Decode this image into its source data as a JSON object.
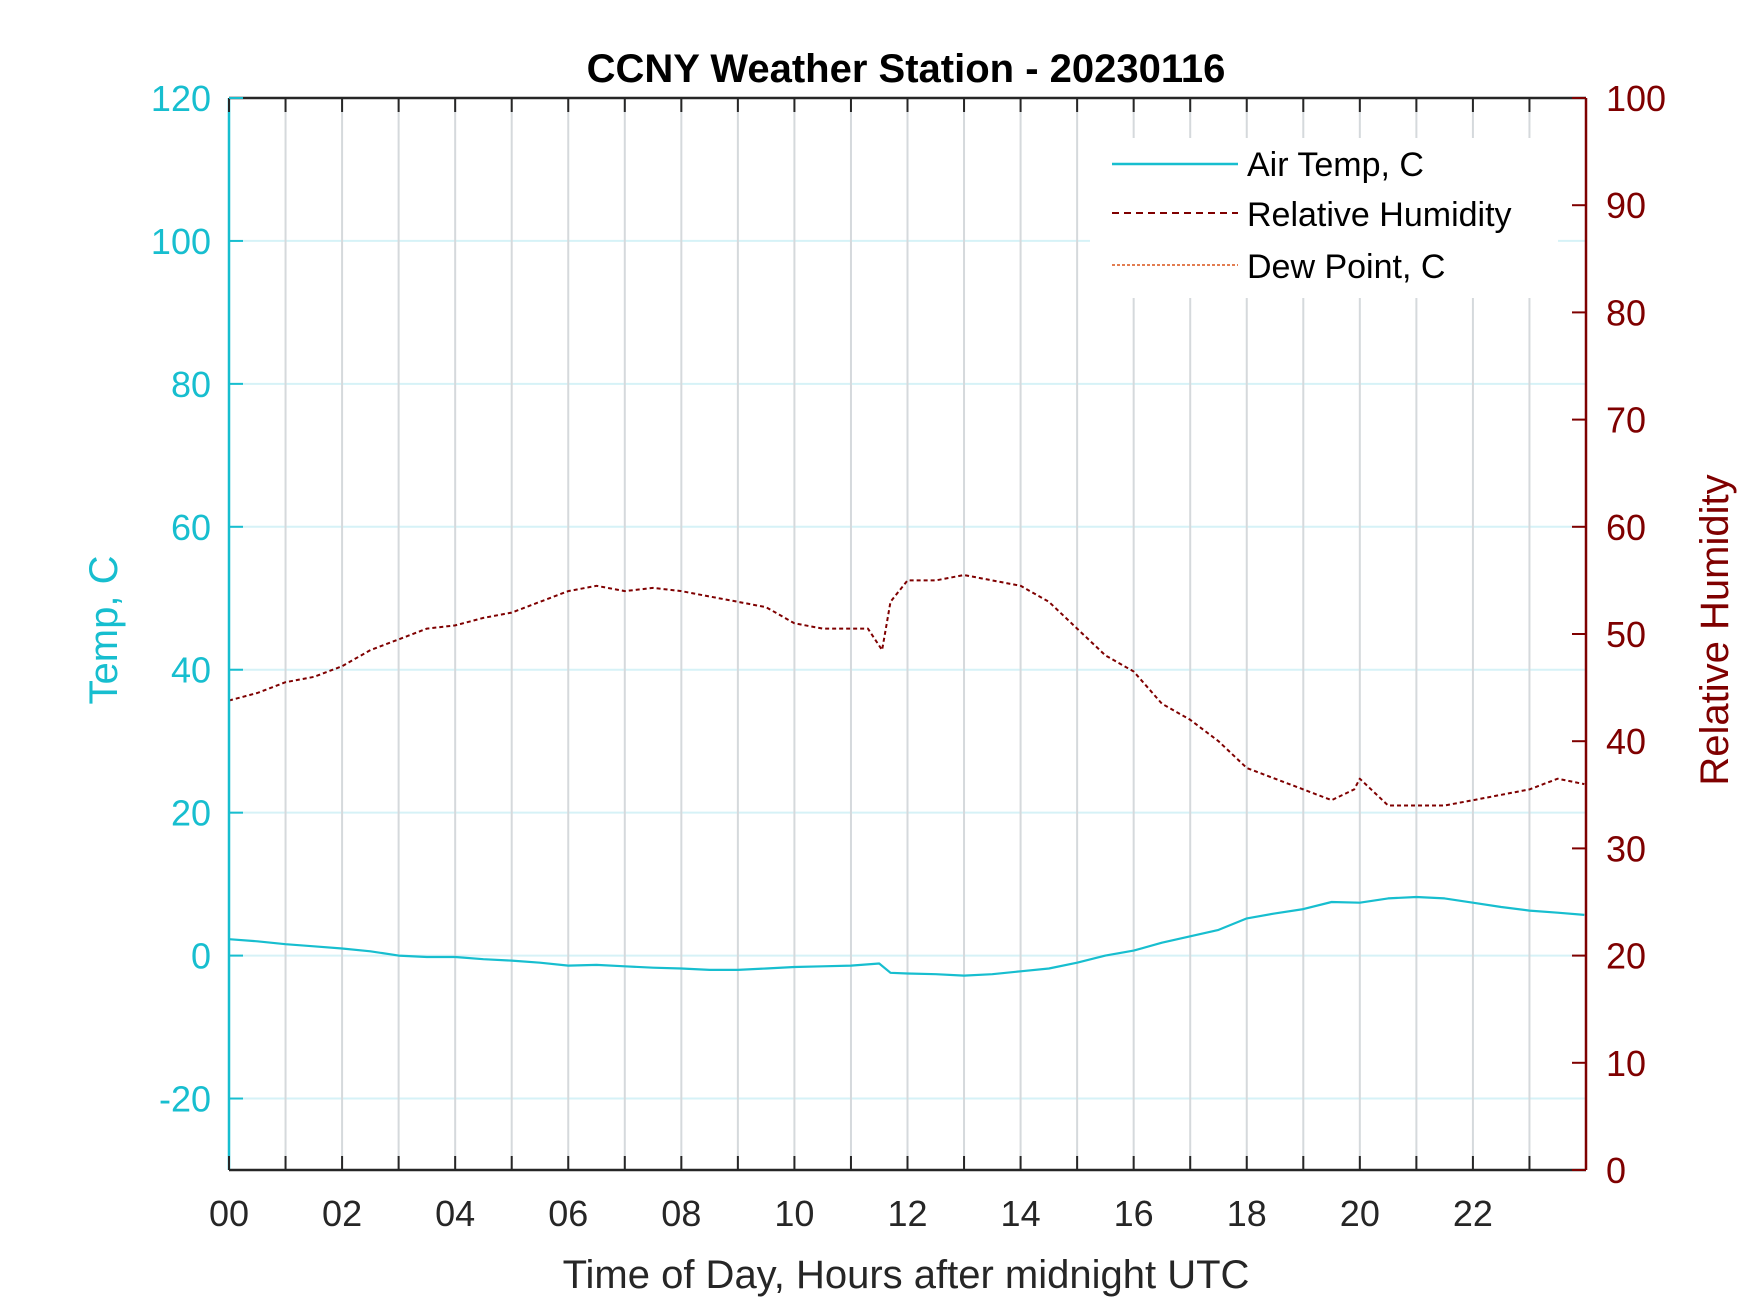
{
  "colors": {
    "temp": "#17becf",
    "humidity": "#7f0000",
    "dewpoint": "#d95319",
    "grid_v": "#d5d9dc",
    "grid_h": "#d6f2f7",
    "axis_dark": "#262626"
  },
  "chart_data": {
    "type": "line",
    "title": "CCNY Weather Station - 20230116",
    "xlabel": "Time of Day, Hours after midnight UTC",
    "ylabel_left": "Temp, C",
    "ylabel_right": "Relative Humidity",
    "xlim": [
      0,
      24
    ],
    "ylim_left": [
      -30,
      120
    ],
    "ylim_right": [
      0,
      100
    ],
    "x_ticks": [
      0,
      2,
      4,
      6,
      8,
      10,
      12,
      14,
      16,
      18,
      20,
      22
    ],
    "x_tick_labels": [
      "00",
      "02",
      "04",
      "06",
      "08",
      "10",
      "12",
      "14",
      "16",
      "18",
      "20",
      "22"
    ],
    "x_minor_ticks": [
      1,
      3,
      5,
      7,
      9,
      11,
      13,
      15,
      17,
      19,
      21,
      23
    ],
    "y_left_ticks": [
      -20,
      0,
      20,
      40,
      60,
      80,
      100,
      120
    ],
    "y_left_tick_labels": [
      "-20",
      "0",
      "20",
      "40",
      "60",
      "80",
      "100",
      "120"
    ],
    "y_right_ticks": [
      0,
      10,
      20,
      30,
      40,
      50,
      60,
      70,
      80,
      90,
      100
    ],
    "y_right_tick_labels": [
      "0",
      "10",
      "20",
      "30",
      "40",
      "50",
      "60",
      "70",
      "80",
      "90",
      "100"
    ],
    "grid": true,
    "legend_position": "top-right",
    "legend": [
      "Air Temp, C",
      "Relative Humidity",
      "Dew Point, C"
    ],
    "series": [
      {
        "name": "Air Temp, C",
        "axis": "left",
        "style": "solid",
        "x": [
          0,
          0.5,
          1,
          1.5,
          2,
          2.5,
          3,
          3.5,
          4,
          4.5,
          5,
          5.5,
          6,
          6.5,
          7,
          7.5,
          8,
          8.5,
          9,
          9.5,
          10,
          10.5,
          11,
          11.5,
          11.7,
          12,
          12.5,
          13,
          13.5,
          14,
          14.5,
          15,
          15.5,
          16,
          16.5,
          17,
          17.5,
          18,
          18.5,
          19,
          19.5,
          20,
          20.5,
          21,
          21.5,
          22,
          22.5,
          23,
          23.5,
          23.97
        ],
        "y": [
          2.3,
          2.0,
          1.6,
          1.3,
          1.0,
          0.6,
          0.0,
          -0.2,
          -0.2,
          -0.5,
          -0.7,
          -1.0,
          -1.4,
          -1.3,
          -1.5,
          -1.7,
          -1.8,
          -2.0,
          -2.0,
          -1.8,
          -1.6,
          -1.5,
          -1.4,
          -1.1,
          -2.4,
          -2.5,
          -2.6,
          -2.8,
          -2.6,
          -2.2,
          -1.8,
          -1.0,
          0.0,
          0.7,
          1.8,
          2.7,
          3.6,
          5.2,
          5.9,
          6.5,
          7.5,
          7.4,
          8.0,
          8.2,
          8.0,
          7.4,
          6.8,
          6.3,
          6.0,
          5.7
        ]
      },
      {
        "name": "Relative Humidity",
        "axis": "right",
        "style": "dashed",
        "x": [
          0,
          0.5,
          1,
          1.5,
          2,
          2.5,
          3,
          3.5,
          4,
          4.5,
          5,
          5.5,
          6,
          6.5,
          7,
          7.5,
          8,
          8.5,
          9,
          9.5,
          10,
          10.5,
          11,
          11.3,
          11.55,
          11.7,
          12,
          12.5,
          13,
          13.5,
          14,
          14.5,
          15,
          15.5,
          16,
          16.5,
          17,
          17.5,
          18,
          18.5,
          19,
          19.5,
          19.9,
          20,
          20.5,
          21,
          21.5,
          22,
          22.5,
          23,
          23.5,
          23.97
        ],
        "y": [
          43.8,
          44.5,
          45.5,
          46.0,
          47.0,
          48.5,
          49.5,
          50.5,
          50.8,
          51.5,
          52.0,
          53.0,
          54.0,
          54.5,
          54.0,
          54.3,
          54.0,
          53.5,
          53.0,
          52.5,
          51.0,
          50.5,
          50.5,
          50.5,
          48.5,
          53.0,
          55.0,
          55.0,
          55.5,
          55.0,
          54.5,
          53.0,
          50.5,
          48.0,
          46.5,
          43.5,
          42.0,
          40.0,
          37.5,
          36.5,
          35.5,
          34.5,
          35.5,
          36.5,
          34.0,
          34.0,
          34.0,
          34.5,
          35.0,
          35.5,
          36.5,
          36.0
        ]
      },
      {
        "name": "Dew Point, C",
        "axis": "left",
        "style": "dotted",
        "x": [],
        "y": []
      }
    ]
  }
}
